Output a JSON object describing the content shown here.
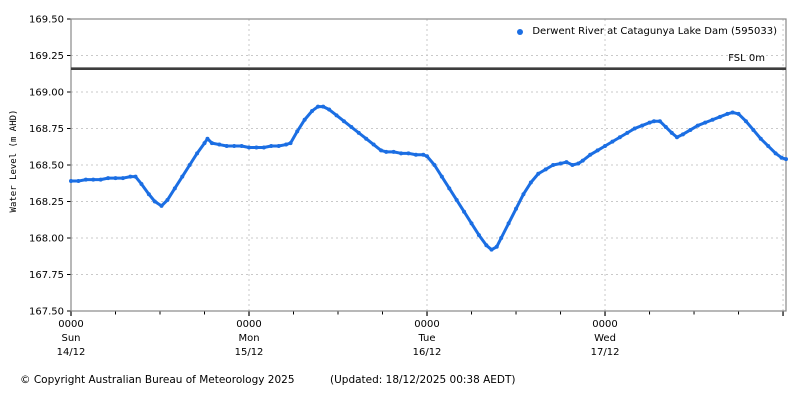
{
  "colors": {
    "series": "#1b6ee3",
    "fsl_line": "#3d3d3d",
    "grid": "#c9c9c9",
    "axis": "#888888",
    "text": "#000000",
    "background": "#ffffff"
  },
  "legend": {
    "label": "Derwent River at Catagunya Lake Dam (595033)"
  },
  "fsl": {
    "label": "FSL 0m",
    "value": 169.16
  },
  "ylabel": "Water Level (m AHD)",
  "footer": {
    "copyright": "© Copyright Australian Bureau of Meteorology 2025",
    "updated": "(Updated: 18/12/2025 00:38 AEDT)"
  },
  "chart_data": {
    "type": "line",
    "title": "",
    "xlabel": "",
    "ylabel": "Water Level (m AHD)",
    "ylim": [
      167.5,
      169.5
    ],
    "ytick_step": 0.25,
    "ytick_labels": [
      "169.50",
      "169.25",
      "169.00",
      "168.75",
      "168.50",
      "168.25",
      "168.00",
      "167.75",
      "167.50"
    ],
    "x_hours_total": 96.4,
    "grid": true,
    "legend_position": "top-right-inside",
    "minor_tick_every_hours": 6,
    "xticks": [
      {
        "hour": 0,
        "time": "0000",
        "day": "Sun",
        "date": "14/12"
      },
      {
        "hour": 24,
        "time": "0000",
        "day": "Mon",
        "date": "15/12"
      },
      {
        "hour": 48,
        "time": "0000",
        "day": "Tue",
        "date": "16/12"
      },
      {
        "hour": 72,
        "time": "0000",
        "day": "Wed",
        "date": "17/12"
      },
      {
        "hour": 96,
        "time": "",
        "day": "",
        "date": ""
      }
    ],
    "fsl_level": 169.16,
    "series": [
      {
        "name": "Derwent River at Catagunya Lake Dam (595033)",
        "units": "m AHD",
        "points": [
          [
            0,
            168.39
          ],
          [
            1,
            168.39
          ],
          [
            2,
            168.4
          ],
          [
            3,
            168.4
          ],
          [
            4,
            168.4
          ],
          [
            5,
            168.41
          ],
          [
            6,
            168.41
          ],
          [
            7,
            168.41
          ],
          [
            8,
            168.42
          ],
          [
            8.7,
            168.42
          ],
          [
            9.5,
            168.37
          ],
          [
            10.5,
            168.3
          ],
          [
            11.3,
            168.25
          ],
          [
            12.2,
            168.22
          ],
          [
            13,
            168.26
          ],
          [
            14,
            168.34
          ],
          [
            15,
            168.42
          ],
          [
            16,
            168.5
          ],
          [
            17,
            168.58
          ],
          [
            18,
            168.65
          ],
          [
            18.4,
            168.68
          ],
          [
            19,
            168.65
          ],
          [
            20,
            168.64
          ],
          [
            21,
            168.63
          ],
          [
            22,
            168.63
          ],
          [
            23,
            168.63
          ],
          [
            24,
            168.62
          ],
          [
            25,
            168.62
          ],
          [
            26,
            168.62
          ],
          [
            27,
            168.63
          ],
          [
            28,
            168.63
          ],
          [
            29,
            168.64
          ],
          [
            29.6,
            168.65
          ],
          [
            30.5,
            168.73
          ],
          [
            31.5,
            168.81
          ],
          [
            32.5,
            168.87
          ],
          [
            33.3,
            168.9
          ],
          [
            34,
            168.9
          ],
          [
            34.8,
            168.88
          ],
          [
            35.8,
            168.84
          ],
          [
            36.8,
            168.8
          ],
          [
            37.8,
            168.76
          ],
          [
            38.8,
            168.72
          ],
          [
            39.8,
            168.68
          ],
          [
            40.8,
            168.64
          ],
          [
            41.8,
            168.6
          ],
          [
            42.5,
            168.59
          ],
          [
            43.5,
            168.59
          ],
          [
            44.5,
            168.58
          ],
          [
            45.5,
            168.58
          ],
          [
            46.5,
            168.57
          ],
          [
            47.5,
            168.57
          ],
          [
            48,
            168.56
          ],
          [
            49,
            168.5
          ],
          [
            50,
            168.42
          ],
          [
            51,
            168.34
          ],
          [
            52,
            168.26
          ],
          [
            53,
            168.18
          ],
          [
            54,
            168.1
          ],
          [
            55,
            168.02
          ],
          [
            56,
            167.95
          ],
          [
            56.7,
            167.92
          ],
          [
            57.4,
            167.94
          ],
          [
            58,
            168.0
          ],
          [
            59,
            168.1
          ],
          [
            60,
            168.2
          ],
          [
            61,
            168.3
          ],
          [
            62,
            168.38
          ],
          [
            63,
            168.44
          ],
          [
            64,
            168.47
          ],
          [
            65,
            168.5
          ],
          [
            66,
            168.51
          ],
          [
            66.8,
            168.52
          ],
          [
            67.6,
            168.5
          ],
          [
            68.4,
            168.51
          ],
          [
            69,
            168.53
          ],
          [
            70,
            168.57
          ],
          [
            71,
            168.6
          ],
          [
            72,
            168.63
          ],
          [
            73,
            168.66
          ],
          [
            74,
            168.69
          ],
          [
            75,
            168.72
          ],
          [
            76,
            168.75
          ],
          [
            77,
            168.77
          ],
          [
            78,
            168.79
          ],
          [
            78.6,
            168.8
          ],
          [
            79.4,
            168.8
          ],
          [
            80.2,
            168.76
          ],
          [
            81,
            168.72
          ],
          [
            81.7,
            168.69
          ],
          [
            82.5,
            168.71
          ],
          [
            83.5,
            168.74
          ],
          [
            84.5,
            168.77
          ],
          [
            85.5,
            168.79
          ],
          [
            86.5,
            168.81
          ],
          [
            87.5,
            168.83
          ],
          [
            88.5,
            168.85
          ],
          [
            89.2,
            168.86
          ],
          [
            90,
            168.85
          ],
          [
            91,
            168.8
          ],
          [
            92,
            168.74
          ],
          [
            93,
            168.68
          ],
          [
            94,
            168.63
          ],
          [
            95,
            168.58
          ],
          [
            95.8,
            168.55
          ],
          [
            96.4,
            168.54
          ]
        ]
      }
    ]
  }
}
